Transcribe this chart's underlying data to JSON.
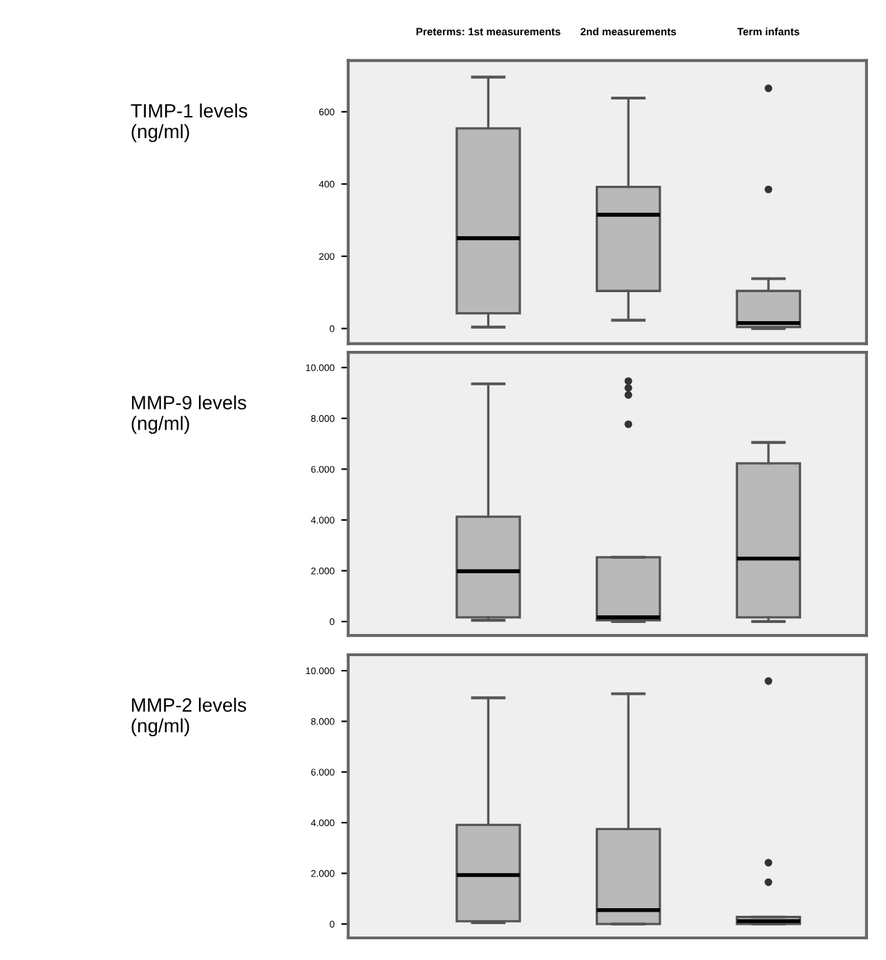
{
  "chart_data": [
    {
      "type": "box",
      "ylabel": "TIMP-1 levels\n(ng/ml)",
      "categories": [
        "Preterms: 1st measurements",
        "2nd measurements",
        "Term infants"
      ],
      "color": "#b9b9b9",
      "ylim": [
        -42,
        742
      ],
      "yticks": [
        0,
        200,
        400,
        600
      ],
      "boxes": [
        {
          "low": 4,
          "q1": 42,
          "median": 250,
          "q3": 554,
          "high": 696
        },
        {
          "low": 23,
          "q1": 104,
          "median": 315,
          "q3": 392,
          "high": 638
        },
        {
          "low": 0,
          "q1": 4,
          "median": 15,
          "q3": 104,
          "high": 138,
          "outliers": [
            665,
            385
          ]
        }
      ]
    },
    {
      "type": "box",
      "ylabel": "MMP-9 levels\n(ng/ml)",
      "categories": [
        null,
        null,
        null
      ],
      "color": "#b9b9b9",
      "ylim": [
        -550,
        10600
      ],
      "yticks": [
        0,
        {
          "value": 2000,
          "label": "2.000"
        },
        {
          "value": 4000,
          "label": "4.000"
        },
        {
          "value": 6000,
          "label": "6.000"
        },
        {
          "value": 8000,
          "label": "8.000"
        },
        {
          "value": 10000,
          "label": "10.000"
        }
      ],
      "tick_labels": "y",
      "boxes": [
        {
          "low": 50,
          "q1": 165,
          "median": 1980,
          "q3": 4130,
          "high": 9360
        },
        {
          "low": 0,
          "q1": 50,
          "median": 165,
          "q3": 2530,
          "high": 2530,
          "outliers": [
            9470,
            9200,
            8920,
            7770
          ]
        },
        {
          "low": 0,
          "q1": 165,
          "median": 2480,
          "q3": 6230,
          "high": 7050
        }
      ]
    },
    {
      "type": "box",
      "ylabel": "MMP-2 levels\n(ng/ml)",
      "categories": [
        null,
        null,
        null
      ],
      "color": "#b9b9b9",
      "ylim": [
        -550,
        10630
      ],
      "yticks": [
        0,
        {
          "value": 2000,
          "label": "2.000"
        },
        {
          "value": 4000,
          "label": "4.000"
        },
        {
          "value": 6000,
          "label": "6.000"
        },
        {
          "value": 8000,
          "label": "8.000"
        },
        {
          "value": 10000,
          "label": "10.000"
        }
      ],
      "tick_labels": "y",
      "boxes": [
        {
          "low": 55,
          "q1": 110,
          "median": 1930,
          "q3": 3910,
          "high": 8930
        },
        {
          "low": 0,
          "q1": 0,
          "median": 550,
          "q3": 3750,
          "high": 9090
        },
        {
          "low": 0,
          "q1": 0,
          "median": 110,
          "q3": 275,
          "high": 275,
          "outliers": [
            9590,
            2420,
            1650
          ]
        }
      ]
    }
  ]
}
